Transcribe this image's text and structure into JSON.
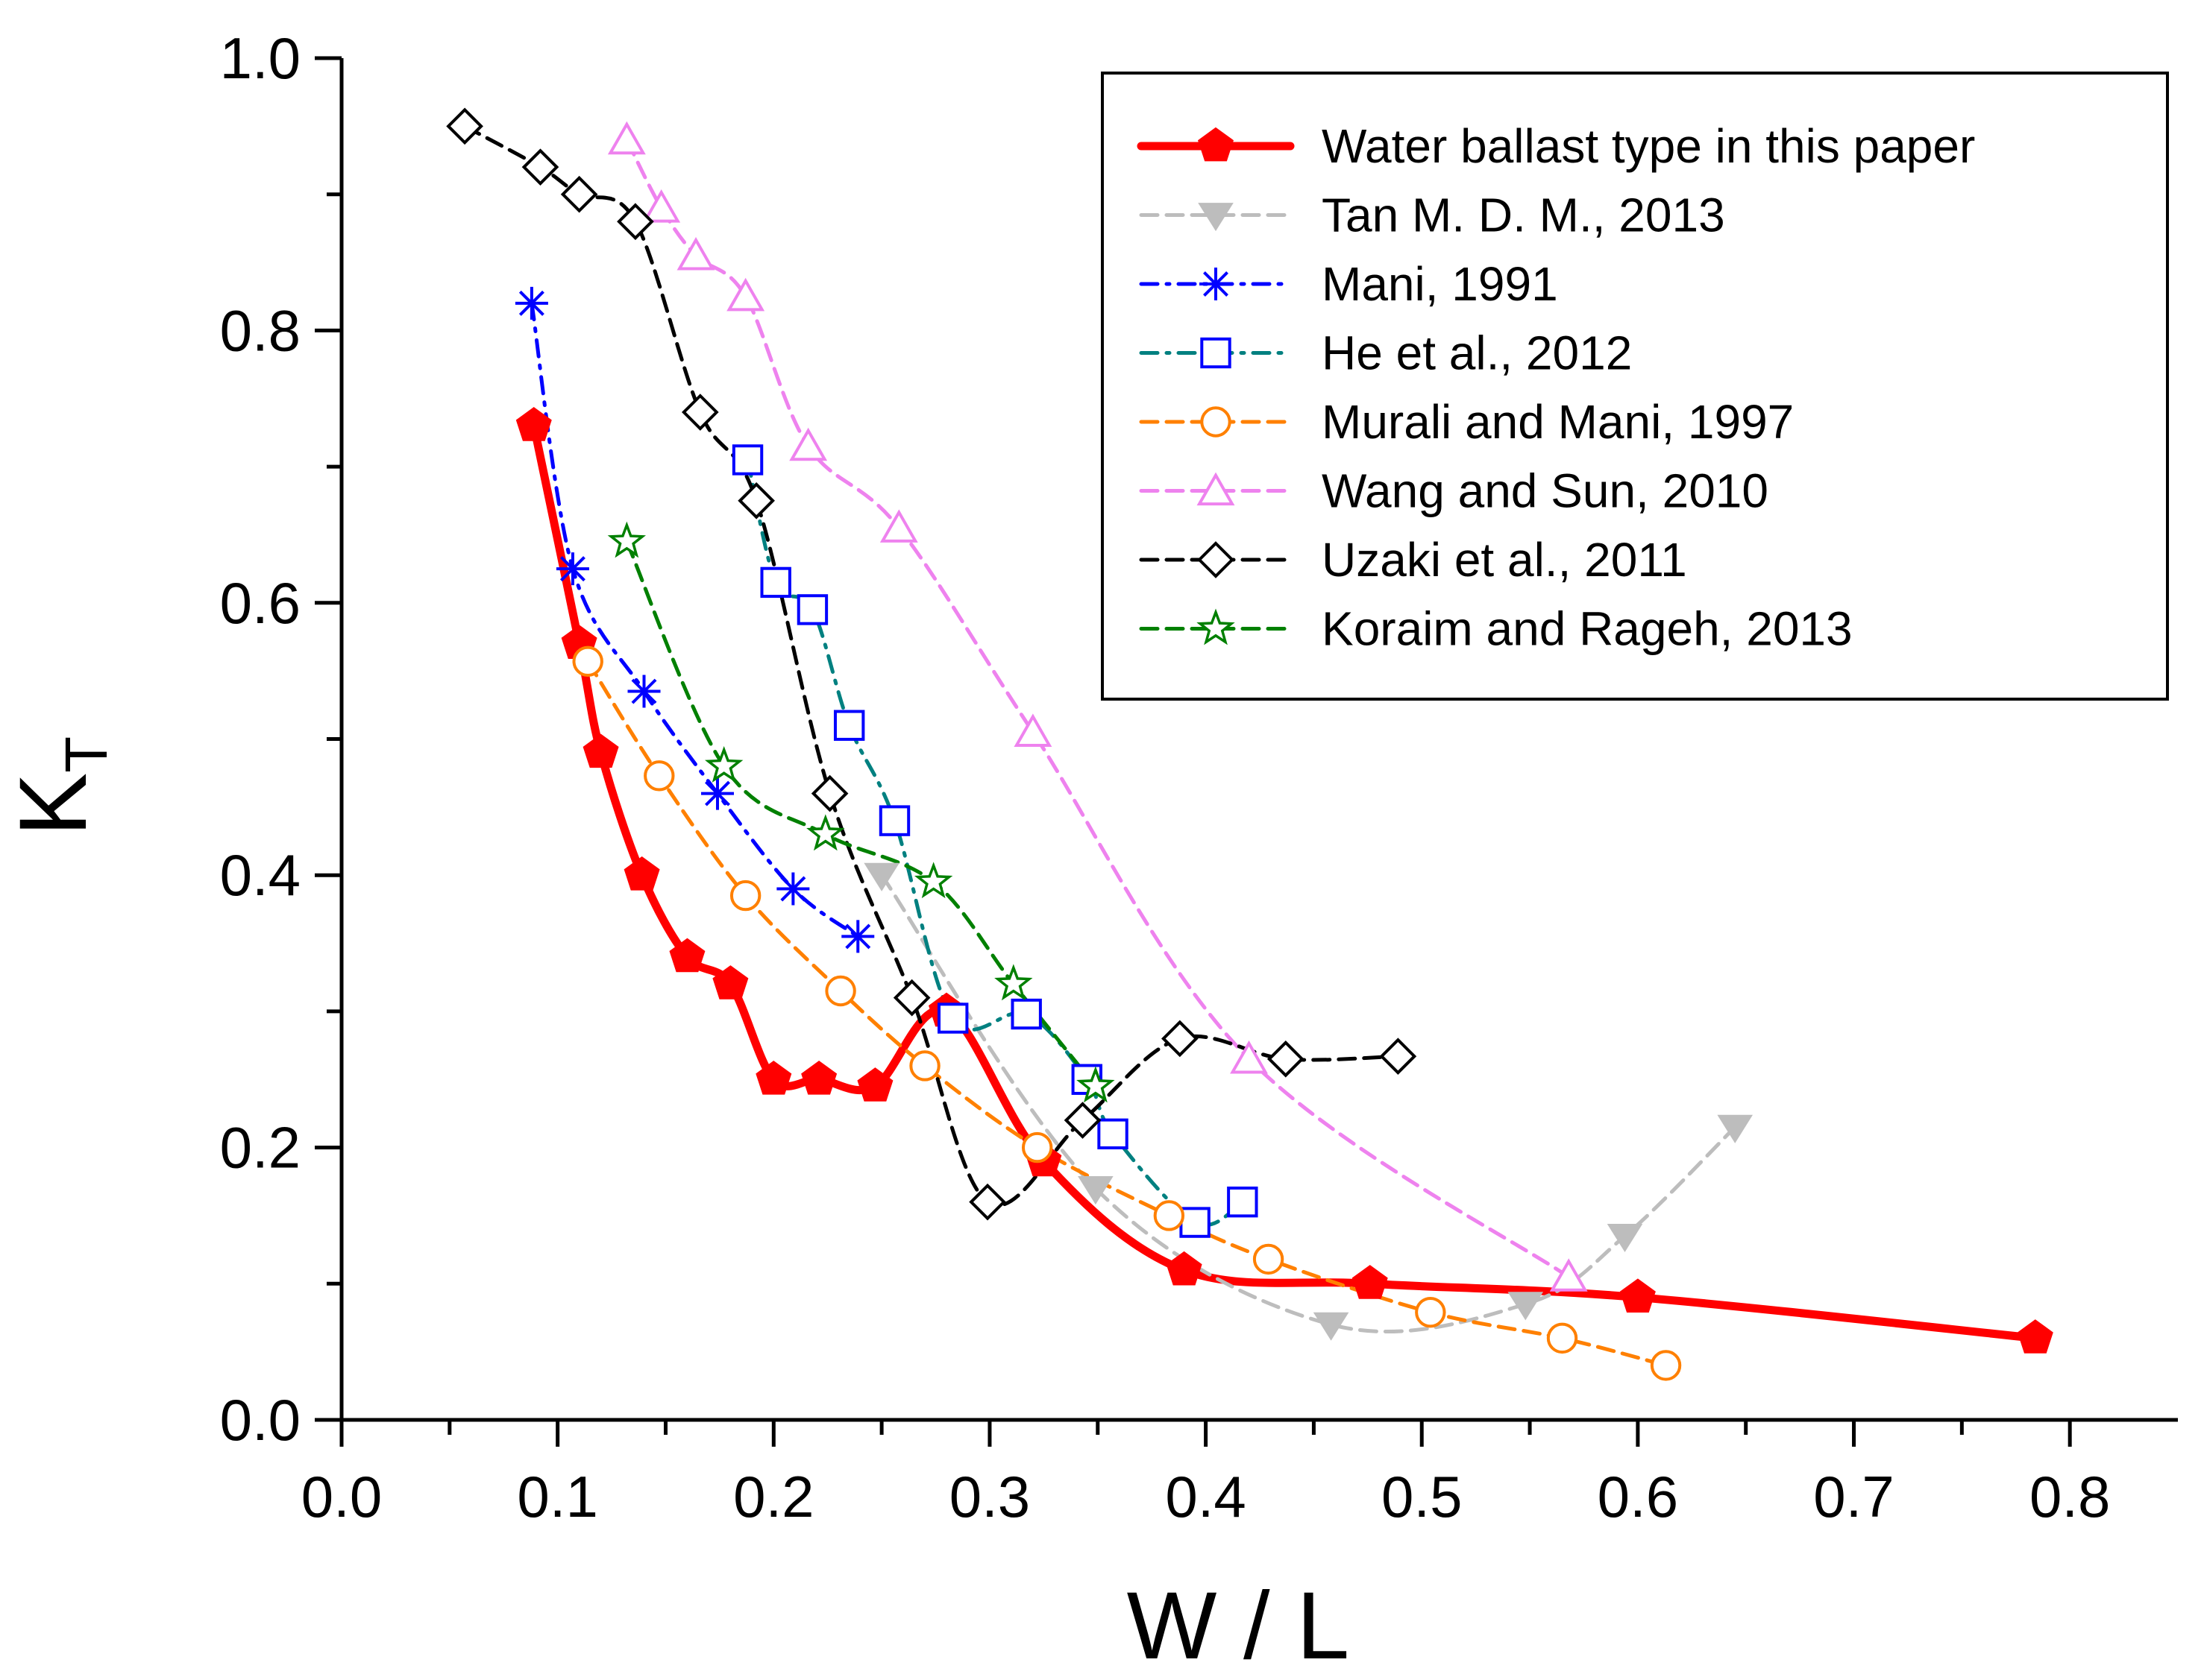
{
  "chart_data": {
    "type": "scatter",
    "xlabel": "W / L",
    "ylabel_main": "K",
    "ylabel_sub": "T",
    "xlim": [
      0,
      0.85
    ],
    "ylim": [
      0,
      1.0
    ],
    "x_ticks": [
      0.0,
      0.1,
      0.2,
      0.3,
      0.4,
      0.5,
      0.6,
      0.7,
      0.8
    ],
    "x_tick_labels": [
      "0.0",
      "0.1",
      "0.2",
      "0.3",
      "0.4",
      "0.5",
      "0.6",
      "0.7",
      "0.8"
    ],
    "y_ticks": [
      0.0,
      0.2,
      0.4,
      0.6,
      0.8,
      1.0
    ],
    "y_tick_labels": [
      "0.0",
      "0.2",
      "0.4",
      "0.6",
      "0.8",
      "1.0"
    ],
    "grid": false,
    "legend_position": "top-right",
    "series": [
      {
        "name": "Water ballast type in this paper",
        "color": "#ff0000",
        "marker": "pentagon",
        "line": "solid",
        "x": [
          0.089,
          0.11,
          0.12,
          0.139,
          0.16,
          0.18,
          0.2,
          0.221,
          0.247,
          0.28,
          0.325,
          0.39,
          0.476,
          0.6,
          0.784
        ],
        "y": [
          0.73,
          0.57,
          0.49,
          0.4,
          0.34,
          0.32,
          0.25,
          0.25,
          0.245,
          0.3,
          0.19,
          0.11,
          0.1,
          0.09,
          0.06
        ]
      },
      {
        "name": "Tan M. D. M., 2013",
        "color": "#bdbdbd",
        "marker": "triangle-down",
        "line": "dash",
        "x": [
          0.25,
          0.349,
          0.458,
          0.548,
          0.594,
          0.645
        ],
        "y": [
          0.4,
          0.17,
          0.07,
          0.085,
          0.135,
          0.215
        ]
      },
      {
        "name": "Mani, 1991",
        "color": "#0000ff",
        "marker": "asterisk",
        "line": "dashdot",
        "x": [
          0.088,
          0.107,
          0.14,
          0.174,
          0.209,
          0.239
        ],
        "y": [
          0.82,
          0.625,
          0.535,
          0.46,
          0.39,
          0.355
        ]
      },
      {
        "name": "He et al., 2012",
        "color": "#008080",
        "marker_color": "#0000ff",
        "marker": "square",
        "line": "dashdot",
        "x": [
          0.188,
          0.201,
          0.218,
          0.235,
          0.256,
          0.283,
          0.317,
          0.345,
          0.357,
          0.395,
          0.417
        ],
        "y": [
          0.705,
          0.615,
          0.595,
          0.51,
          0.44,
          0.295,
          0.298,
          0.25,
          0.21,
          0.145,
          0.16
        ]
      },
      {
        "name": "Murali and Mani, 1997",
        "color": "#ff8000",
        "marker": "circle",
        "line": "dash",
        "x": [
          0.114,
          0.147,
          0.187,
          0.231,
          0.27,
          0.322,
          0.383,
          0.429,
          0.504,
          0.565,
          0.613
        ],
        "y": [
          0.557,
          0.473,
          0.385,
          0.315,
          0.26,
          0.2,
          0.15,
          0.118,
          0.079,
          0.06,
          0.04
        ]
      },
      {
        "name": "Wang and Sun, 2010",
        "color": "#ee82ee",
        "marker": "triangle-up",
        "line": "dash",
        "x": [
          0.132,
          0.148,
          0.164,
          0.187,
          0.216,
          0.258,
          0.32,
          0.42,
          0.568
        ],
        "y": [
          0.94,
          0.89,
          0.855,
          0.825,
          0.715,
          0.655,
          0.505,
          0.265,
          0.105
        ]
      },
      {
        "name": "Uzaki et al., 2011",
        "color": "#000000",
        "marker": "diamond",
        "line": "dash",
        "x": [
          0.057,
          0.092,
          0.11,
          0.136,
          0.166,
          0.192,
          0.226,
          0.264,
          0.299,
          0.343,
          0.388,
          0.437,
          0.489
        ],
        "y": [
          0.95,
          0.92,
          0.9,
          0.88,
          0.74,
          0.675,
          0.46,
          0.31,
          0.16,
          0.22,
          0.28,
          0.265,
          0.267
        ]
      },
      {
        "name": "Koraim and Rageh, 2013",
        "color": "#008000",
        "marker": "star",
        "line": "dash",
        "x": [
          0.132,
          0.177,
          0.224,
          0.274,
          0.311,
          0.349
        ],
        "y": [
          0.645,
          0.48,
          0.43,
          0.395,
          0.32,
          0.245
        ]
      }
    ]
  }
}
